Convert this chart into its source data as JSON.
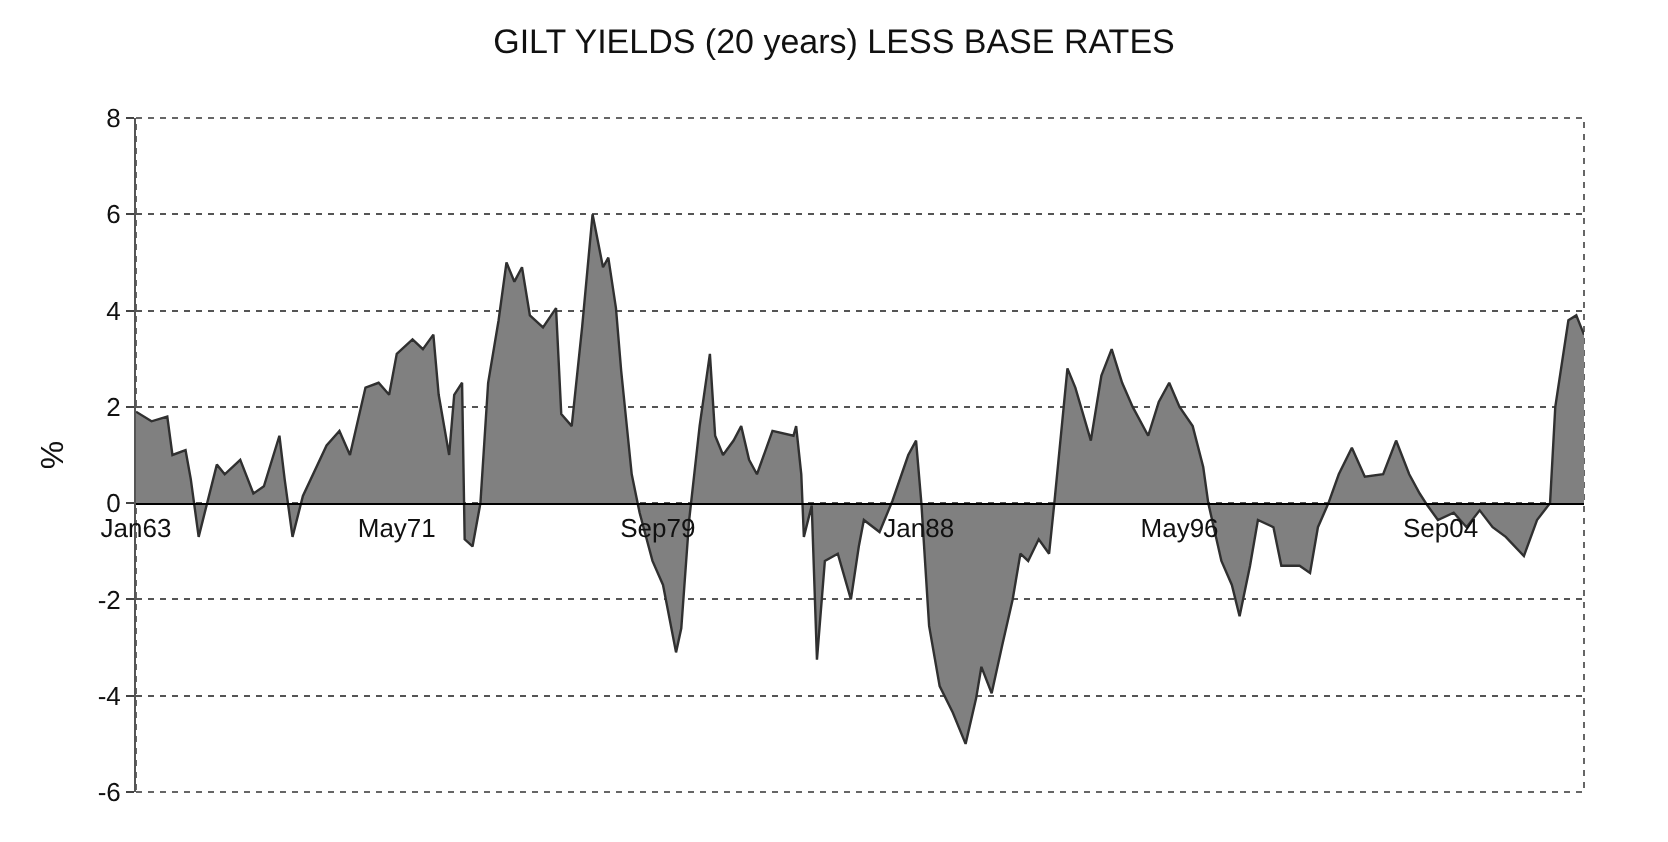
{
  "chart_data": {
    "type": "area",
    "title": "GILT YIELDS (20 years) LESS BASE RATES",
    "ylabel": "%",
    "x": [
      "1963-01",
      "1963-07",
      "1964-01",
      "1964-03",
      "1964-08",
      "1964-10",
      "1965-01",
      "1965-08",
      "1965-11",
      "1966-05",
      "1966-10",
      "1967-02",
      "1967-08",
      "1967-10",
      "1968-01",
      "1968-05",
      "1969-02",
      "1969-07",
      "1969-11",
      "1970-05",
      "1970-10",
      "1971-02",
      "1971-05",
      "1971-11",
      "1972-03",
      "1972-07",
      "1972-09",
      "1973-01",
      "1973-03",
      "1973-06",
      "1973-07",
      "1973-10",
      "1974-01",
      "1974-04",
      "1974-08",
      "1974-11",
      "1975-02",
      "1975-05",
      "1975-08",
      "1976-01",
      "1976-06",
      "1976-08",
      "1976-12",
      "1977-04",
      "1977-08",
      "1977-12",
      "1978-02",
      "1978-05",
      "1978-07",
      "1978-11",
      "1979-02",
      "1979-07",
      "1979-11",
      "1980-04",
      "1980-06",
      "1980-09",
      "1981-01",
      "1981-05",
      "1981-07",
      "1981-10",
      "1982-02",
      "1982-05",
      "1982-08",
      "1982-11",
      "1983-05",
      "1984-01",
      "1984-02",
      "1984-04",
      "1984-05",
      "1984-08",
      "1984-10",
      "1985-01",
      "1985-06",
      "1985-11",
      "1986-02",
      "1986-04",
      "1986-10",
      "1987-03",
      "1987-09",
      "1987-12",
      "1988-02",
      "1988-05",
      "1988-09",
      "1989-02",
      "1989-07",
      "1989-11",
      "1990-01",
      "1990-05",
      "1990-09",
      "1991-01",
      "1991-04",
      "1991-07",
      "1991-11",
      "1992-03",
      "1992-05",
      "1992-10",
      "1993-01",
      "1993-07",
      "1993-11",
      "1994-03",
      "1994-07",
      "1994-11",
      "1995-05",
      "1995-09",
      "1996-01",
      "1996-05",
      "1996-10",
      "1997-02",
      "1997-04",
      "1997-09",
      "1998-01",
      "1998-04",
      "1998-08",
      "1998-11",
      "1999-05",
      "1999-08",
      "2000-03",
      "2000-07",
      "2000-10",
      "2001-02",
      "2001-06",
      "2001-11",
      "2002-04",
      "2002-11",
      "2003-04",
      "2003-09",
      "2004-01",
      "2004-04",
      "2004-08",
      "2005-02",
      "2005-07",
      "2005-12",
      "2006-05",
      "2006-10",
      "2007-05",
      "2007-10",
      "2008-03",
      "2008-05",
      "2008-10",
      "2009-01",
      "2009-04"
    ],
    "series": [
      {
        "color": "#808080",
        "values": [
          1.9,
          1.7,
          1.8,
          1.0,
          1.1,
          0.5,
          -0.7,
          0.8,
          0.6,
          0.9,
          0.2,
          0.35,
          1.4,
          0.5,
          -0.7,
          0.15,
          1.2,
          1.5,
          1.0,
          2.4,
          2.5,
          2.25,
          3.1,
          3.4,
          3.2,
          3.5,
          2.25,
          1.0,
          2.25,
          2.5,
          -0.75,
          -0.9,
          0,
          2.5,
          3.8,
          5.0,
          4.6,
          4.9,
          3.9,
          3.65,
          4.05,
          1.85,
          1.6,
          3.65,
          6.0,
          4.9,
          5.1,
          4.05,
          2.75,
          0.6,
          -0.2,
          -1.2,
          -1.7,
          -3.1,
          -2.6,
          -0.35,
          1.6,
          3.1,
          1.4,
          1.0,
          1.3,
          1.6,
          0.9,
          0.6,
          1.5,
          1.4,
          1.6,
          0.6,
          -0.7,
          -0.05,
          -3.25,
          -1.2,
          -1.05,
          -2.0,
          -0.9,
          -0.35,
          -0.6,
          0.05,
          1.0,
          1.3,
          0,
          -2.55,
          -3.8,
          -4.35,
          -5.0,
          -4.05,
          -3.4,
          -3.95,
          -2.95,
          -2.0,
          -1.05,
          -1.2,
          -0.75,
          -1.05,
          0,
          2.8,
          2.4,
          1.3,
          2.65,
          3.2,
          2.5,
          2.0,
          1.4,
          2.1,
          2.5,
          2.0,
          1.6,
          0.75,
          0,
          -1.2,
          -1.7,
          -2.35,
          -1.3,
          -0.35,
          -0.5,
          -1.3,
          -1.3,
          -1.45,
          -0.5,
          0,
          0.6,
          1.15,
          0.55,
          0.6,
          1.3,
          0.6,
          0.2,
          -0.05,
          -0.35,
          -0.2,
          -0.5,
          -0.15,
          -0.5,
          -0.7,
          -1.1,
          -0.35,
          0,
          2.0,
          3.8,
          3.9,
          3.5
        ]
      }
    ],
    "xlim": [
      "1963-01",
      "2009-04"
    ],
    "xticks": [
      {
        "value": "1963-01",
        "label": "Jan63"
      },
      {
        "value": "1971-05",
        "label": "May71"
      },
      {
        "value": "1979-09",
        "label": "Sep79"
      },
      {
        "value": "1988-01",
        "label": "Jan88"
      },
      {
        "value": "1996-05",
        "label": "May96"
      },
      {
        "value": "2004-09",
        "label": "Sep04"
      }
    ],
    "ylim": [
      -6,
      8
    ],
    "yticks": [
      -6,
      -4,
      -2,
      0,
      2,
      4,
      6,
      8
    ],
    "grid": "y"
  }
}
